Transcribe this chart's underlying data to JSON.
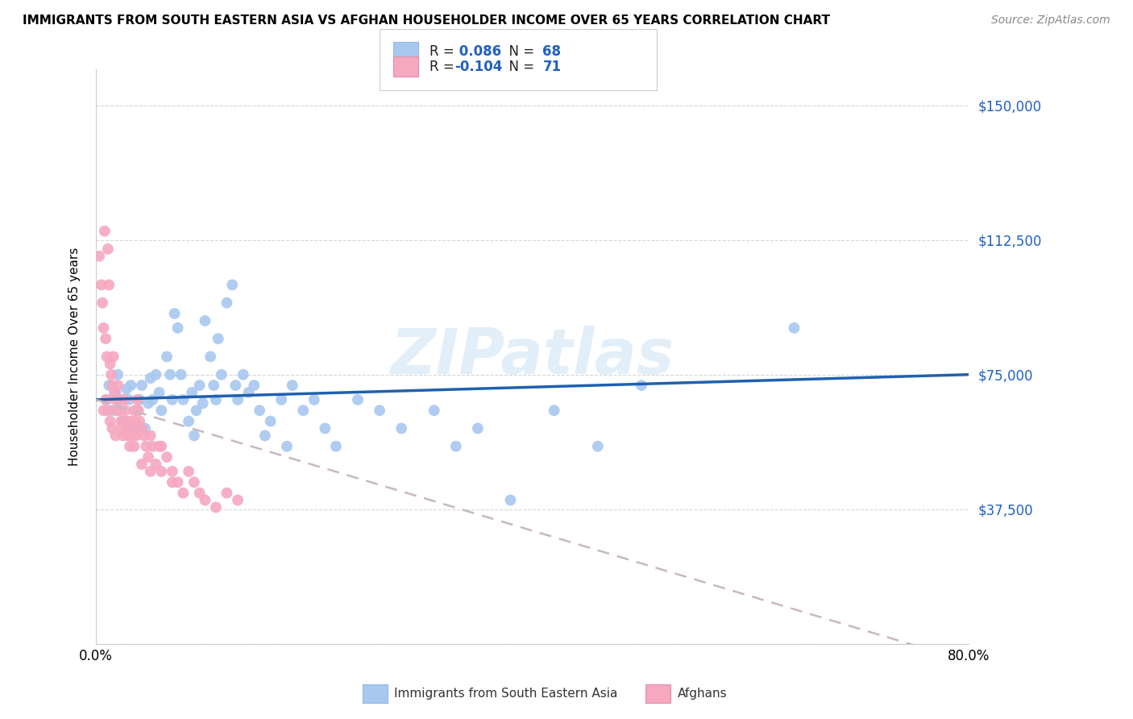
{
  "title": "IMMIGRANTS FROM SOUTH EASTERN ASIA VS AFGHAN HOUSEHOLDER INCOME OVER 65 YEARS CORRELATION CHART",
  "source": "Source: ZipAtlas.com",
  "ylabel": "Householder Income Over 65 years",
  "yticks": [
    0,
    37500,
    75000,
    112500,
    150000
  ],
  "ytick_labels": [
    "",
    "$37,500",
    "$75,000",
    "$112,500",
    "$150,000"
  ],
  "xlim": [
    0.0,
    0.8
  ],
  "ylim": [
    0,
    160000
  ],
  "legend_labels": [
    "Immigrants from South Eastern Asia",
    "Afghans"
  ],
  "R_blue": 0.086,
  "N_blue": 68,
  "R_pink": -0.104,
  "N_pink": 71,
  "blue_color": "#A8C8F0",
  "pink_color": "#F5A8C0",
  "blue_line_color": "#2060B0",
  "pink_line_color": "#C8B8C0",
  "watermark": "ZIPatlas",
  "blue_scatter_x": [
    0.01,
    0.012,
    0.015,
    0.018,
    0.02,
    0.022,
    0.025,
    0.028,
    0.03,
    0.032,
    0.035,
    0.038,
    0.04,
    0.042,
    0.045,
    0.048,
    0.05,
    0.052,
    0.055,
    0.058,
    0.06,
    0.065,
    0.068,
    0.07,
    0.072,
    0.075,
    0.078,
    0.08,
    0.085,
    0.088,
    0.09,
    0.092,
    0.095,
    0.098,
    0.1,
    0.105,
    0.108,
    0.11,
    0.112,
    0.115,
    0.12,
    0.125,
    0.128,
    0.13,
    0.135,
    0.14,
    0.145,
    0.15,
    0.155,
    0.16,
    0.17,
    0.175,
    0.18,
    0.19,
    0.2,
    0.21,
    0.22,
    0.24,
    0.26,
    0.28,
    0.31,
    0.33,
    0.35,
    0.38,
    0.42,
    0.46,
    0.5,
    0.64
  ],
  "blue_scatter_y": [
    68000,
    72000,
    65000,
    70000,
    75000,
    68000,
    62000,
    71000,
    68000,
    72000,
    60000,
    65000,
    68000,
    72000,
    60000,
    67000,
    74000,
    68000,
    75000,
    70000,
    65000,
    80000,
    75000,
    68000,
    92000,
    88000,
    75000,
    68000,
    62000,
    70000,
    58000,
    65000,
    72000,
    67000,
    90000,
    80000,
    72000,
    68000,
    85000,
    75000,
    95000,
    100000,
    72000,
    68000,
    75000,
    70000,
    72000,
    65000,
    58000,
    62000,
    68000,
    55000,
    72000,
    65000,
    68000,
    60000,
    55000,
    68000,
    65000,
    60000,
    65000,
    55000,
    60000,
    40000,
    65000,
    55000,
    72000,
    88000
  ],
  "pink_scatter_x": [
    0.003,
    0.005,
    0.006,
    0.007,
    0.008,
    0.009,
    0.01,
    0.011,
    0.012,
    0.013,
    0.014,
    0.015,
    0.016,
    0.017,
    0.018,
    0.019,
    0.02,
    0.021,
    0.022,
    0.023,
    0.024,
    0.025,
    0.026,
    0.027,
    0.028,
    0.029,
    0.03,
    0.031,
    0.032,
    0.033,
    0.034,
    0.035,
    0.036,
    0.037,
    0.038,
    0.039,
    0.04,
    0.042,
    0.044,
    0.046,
    0.048,
    0.05,
    0.052,
    0.055,
    0.058,
    0.06,
    0.065,
    0.07,
    0.075,
    0.08,
    0.085,
    0.09,
    0.095,
    0.1,
    0.11,
    0.12,
    0.13,
    0.007,
    0.009,
    0.011,
    0.013,
    0.015,
    0.018,
    0.022,
    0.026,
    0.03,
    0.035,
    0.042,
    0.05,
    0.06,
    0.07
  ],
  "pink_scatter_y": [
    108000,
    100000,
    95000,
    88000,
    115000,
    85000,
    80000,
    110000,
    100000,
    78000,
    75000,
    72000,
    80000,
    70000,
    68000,
    65000,
    72000,
    68000,
    65000,
    62000,
    60000,
    58000,
    68000,
    65000,
    62000,
    60000,
    58000,
    55000,
    62000,
    60000,
    58000,
    65000,
    62000,
    58000,
    68000,
    65000,
    62000,
    60000,
    58000,
    55000,
    52000,
    58000,
    55000,
    50000,
    55000,
    48000,
    52000,
    48000,
    45000,
    42000,
    48000,
    45000,
    42000,
    40000,
    38000,
    42000,
    40000,
    65000,
    68000,
    65000,
    62000,
    60000,
    58000,
    65000,
    62000,
    58000,
    55000,
    50000,
    48000,
    55000,
    45000
  ]
}
